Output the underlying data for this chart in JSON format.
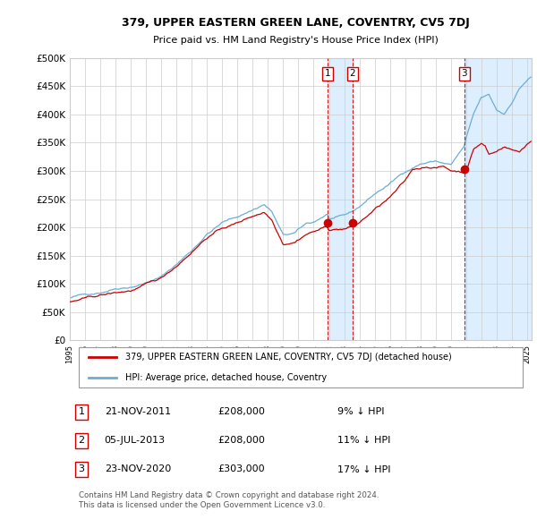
{
  "title": "379, UPPER EASTERN GREEN LANE, COVENTRY, CV5 7DJ",
  "subtitle": "Price paid vs. HM Land Registry's House Price Index (HPI)",
  "ylim": [
    0,
    500000
  ],
  "yticks": [
    0,
    50000,
    100000,
    150000,
    200000,
    250000,
    300000,
    350000,
    400000,
    450000,
    500000
  ],
  "ytick_labels": [
    "£0",
    "£50K",
    "£100K",
    "£150K",
    "£200K",
    "£250K",
    "£300K",
    "£350K",
    "£400K",
    "£450K",
    "£500K"
  ],
  "hpi_color": "#6baed6",
  "price_color": "#cc0000",
  "shade_color": "#ddeeff",
  "background_color": "#ffffff",
  "grid_color": "#cccccc",
  "transactions": [
    {
      "label": "1",
      "date": "21-NOV-2011",
      "price": 208000,
      "pct": "9%",
      "direction": "↓",
      "x_year": 2011.89
    },
    {
      "label": "2",
      "date": "05-JUL-2013",
      "price": 208000,
      "pct": "11%",
      "direction": "↓",
      "x_year": 2013.54
    },
    {
      "label": "3",
      "date": "23-NOV-2020",
      "price": 303000,
      "pct": "17%",
      "direction": "↓",
      "x_year": 2020.89
    }
  ],
  "legend_label_price": "379, UPPER EASTERN GREEN LANE, COVENTRY, CV5 7DJ (detached house)",
  "legend_label_hpi": "HPI: Average price, detached house, Coventry",
  "footnote": "Contains HM Land Registry data © Crown copyright and database right 2024.\nThis data is licensed under the Open Government Licence v3.0.",
  "xlim_start": 1995.0,
  "xlim_end": 2025.3
}
